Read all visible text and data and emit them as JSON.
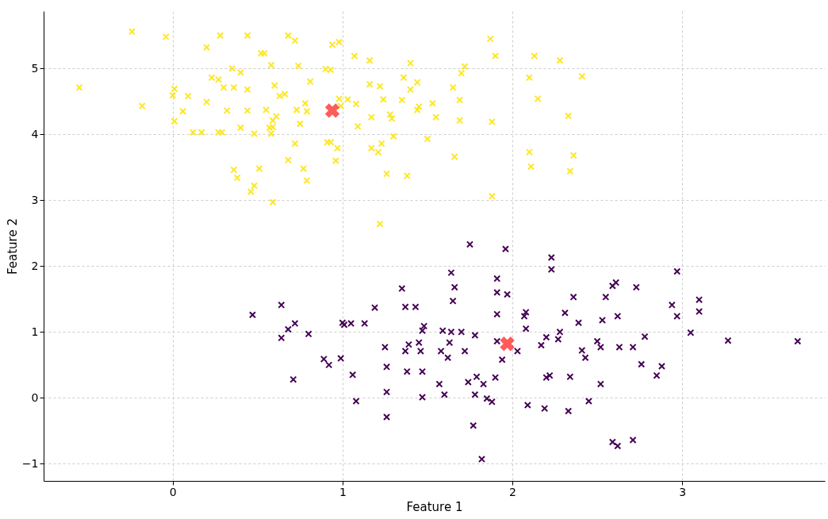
{
  "chart_data": {
    "type": "scatter",
    "xlabel": "Feature 1",
    "ylabel": "Feature 2",
    "xlim": [
      -0.76,
      3.84
    ],
    "ylim": [
      -1.26,
      5.87
    ],
    "xticks": [
      0,
      1,
      2,
      3
    ],
    "yticks": [
      -1,
      0,
      1,
      2,
      3,
      4,
      5
    ],
    "grid": true,
    "marker": "cross",
    "series": [
      {
        "color": "#fde725",
        "x": [
          -0.55,
          -0.24,
          -0.18,
          -0.04,
          0.01,
          0,
          0.06,
          0.01,
          0.09,
          0.12,
          0.17,
          0.2,
          0.2,
          0.23,
          0.28,
          0.27,
          0.3,
          0.27,
          0.29,
          0.32,
          0.35,
          0.36,
          0.4,
          0.44,
          0.38,
          0.36,
          0.44,
          0.44,
          0.4,
          0.46,
          0.48,
          0.51,
          0.48,
          0.52,
          0.54,
          0.58,
          0.55,
          0.59,
          0.57,
          0.59,
          0.58,
          0.61,
          0.59,
          0.6,
          0.63,
          0.66,
          0.68,
          0.72,
          0.68,
          0.73,
          0.75,
          0.72,
          0.77,
          0.78,
          0.79,
          0.79,
          0.81,
          0.74,
          0.9,
          0.93,
          0.91,
          0.93,
          0.96,
          0.94,
          0.98,
          0.98,
          0.99,
          0.97,
          1.03,
          1.07,
          1.08,
          1.09,
          1.16,
          1.16,
          1.17,
          1.22,
          1.23,
          1.17,
          1.21,
          1.24,
          1.26,
          1.22,
          1.28,
          1.29,
          1.3,
          1.36,
          1.35,
          1.38,
          1.4,
          1.4,
          1.44,
          1.45,
          1.44,
          1.5,
          1.53,
          1.55,
          1.65,
          1.7,
          1.72,
          1.69,
          1.69,
          1.66,
          1.87,
          1.9,
          1.88,
          1.88,
          2.1,
          2.13,
          2.15,
          2.1,
          2.11,
          2.28,
          2.33,
          2.36,
          2.34,
          2.41
        ],
        "values": [
          4.71,
          5.56,
          4.43,
          5.48,
          4.69,
          4.59,
          4.35,
          4.2,
          4.58,
          4.03,
          4.03,
          5.32,
          4.49,
          4.86,
          5.5,
          4.83,
          4.71,
          4.03,
          4.03,
          4.36,
          5.0,
          4.71,
          4.94,
          5.5,
          3.34,
          3.46,
          4.68,
          4.36,
          4.1,
          3.13,
          4.01,
          3.48,
          3.22,
          5.23,
          5.23,
          5.05,
          4.37,
          4.21,
          4.1,
          4.11,
          4.01,
          4.27,
          2.97,
          4.74,
          4.58,
          4.61,
          5.5,
          5.42,
          3.61,
          4.37,
          4.16,
          3.86,
          3.48,
          4.47,
          4.35,
          3.3,
          4.8,
          5.04,
          4.99,
          4.98,
          3.88,
          3.88,
          3.6,
          5.36,
          5.4,
          4.54,
          4.43,
          3.79,
          4.53,
          5.19,
          4.46,
          4.12,
          4.76,
          5.12,
          4.26,
          4.73,
          3.86,
          3.79,
          3.73,
          4.53,
          3.4,
          2.64,
          4.3,
          4.24,
          3.97,
          4.86,
          4.52,
          3.37,
          4.68,
          5.08,
          4.79,
          4.42,
          4.37,
          3.93,
          4.47,
          4.26,
          4.71,
          4.93,
          5.03,
          4.52,
          4.21,
          3.66,
          5.45,
          5.19,
          4.19,
          3.06,
          4.86,
          5.19,
          4.54,
          3.73,
          3.51,
          5.12,
          4.28,
          3.68,
          3.44,
          4.88
        ]
      },
      {
        "color": "#440154",
        "x": [
          0.47,
          0.64,
          0.72,
          0.68,
          0.64,
          0.8,
          0.89,
          0.92,
          0.99,
          0.71,
          1.0,
          1.01,
          1.05,
          1.13,
          1.19,
          1.06,
          1.08,
          1.25,
          1.26,
          1.26,
          1.26,
          1.35,
          1.37,
          1.43,
          1.48,
          1.47,
          1.37,
          1.39,
          1.45,
          1.46,
          1.38,
          1.47,
          1.47,
          1.59,
          1.64,
          1.58,
          1.62,
          1.63,
          1.65,
          1.66,
          1.64,
          1.57,
          1.6,
          1.7,
          1.72,
          1.75,
          1.78,
          1.78,
          1.77,
          1.82,
          1.79,
          1.74,
          1.83,
          1.91,
          1.91,
          1.91,
          1.96,
          1.97,
          1.91,
          1.94,
          1.9,
          1.88,
          1.85,
          2.03,
          2.07,
          2.08,
          2.08,
          2.09,
          2.2,
          2.17,
          2.23,
          2.23,
          2.19,
          2.2,
          2.22,
          2.31,
          2.28,
          2.27,
          2.34,
          2.33,
          2.36,
          2.39,
          2.41,
          2.43,
          2.45,
          2.5,
          2.52,
          2.53,
          2.52,
          2.55,
          2.59,
          2.61,
          2.62,
          2.63,
          2.59,
          2.62,
          2.71,
          2.71,
          2.73,
          2.76,
          2.78,
          2.85,
          2.88,
          2.94,
          2.97,
          2.97,
          3.05,
          3.1,
          3.1,
          3.27,
          3.68
        ],
        "values": [
          1.26,
          1.41,
          1.13,
          1.04,
          0.91,
          0.97,
          0.59,
          0.5,
          0.6,
          0.28,
          1.14,
          1.11,
          1.13,
          1.13,
          1.37,
          0.35,
          -0.05,
          0.77,
          0.47,
          0.09,
          -0.29,
          1.66,
          1.38,
          1.38,
          1.09,
          1.02,
          0.71,
          0.81,
          0.84,
          0.71,
          0.4,
          0.4,
          0.01,
          1.02,
          1.0,
          0.71,
          0.61,
          0.84,
          1.47,
          1.68,
          1.9,
          0.21,
          0.05,
          1.0,
          0.71,
          2.33,
          0.95,
          0.05,
          -0.42,
          -0.93,
          0.32,
          0.24,
          0.21,
          1.6,
          1.27,
          1.81,
          2.26,
          1.57,
          0.86,
          0.58,
          0.31,
          -0.06,
          -0.01,
          0.71,
          1.24,
          1.3,
          1.05,
          -0.11,
          0.92,
          0.8,
          2.13,
          1.95,
          -0.16,
          0.31,
          0.34,
          1.29,
          1.0,
          0.89,
          0.32,
          -0.2,
          1.53,
          1.14,
          0.72,
          0.61,
          -0.05,
          0.86,
          0.77,
          1.18,
          0.21,
          1.53,
          1.7,
          1.75,
          1.24,
          0.77,
          -0.67,
          -0.73,
          -0.64,
          0.77,
          1.68,
          0.51,
          0.93,
          0.34,
          0.48,
          1.41,
          1.92,
          1.24,
          0.99,
          1.49,
          1.31,
          0.87,
          0.86
        ]
      },
      {
        "color": "#ff3333",
        "x": [
          0.94,
          1.97
        ],
        "values": [
          4.36,
          0.82
        ]
      }
    ]
  }
}
